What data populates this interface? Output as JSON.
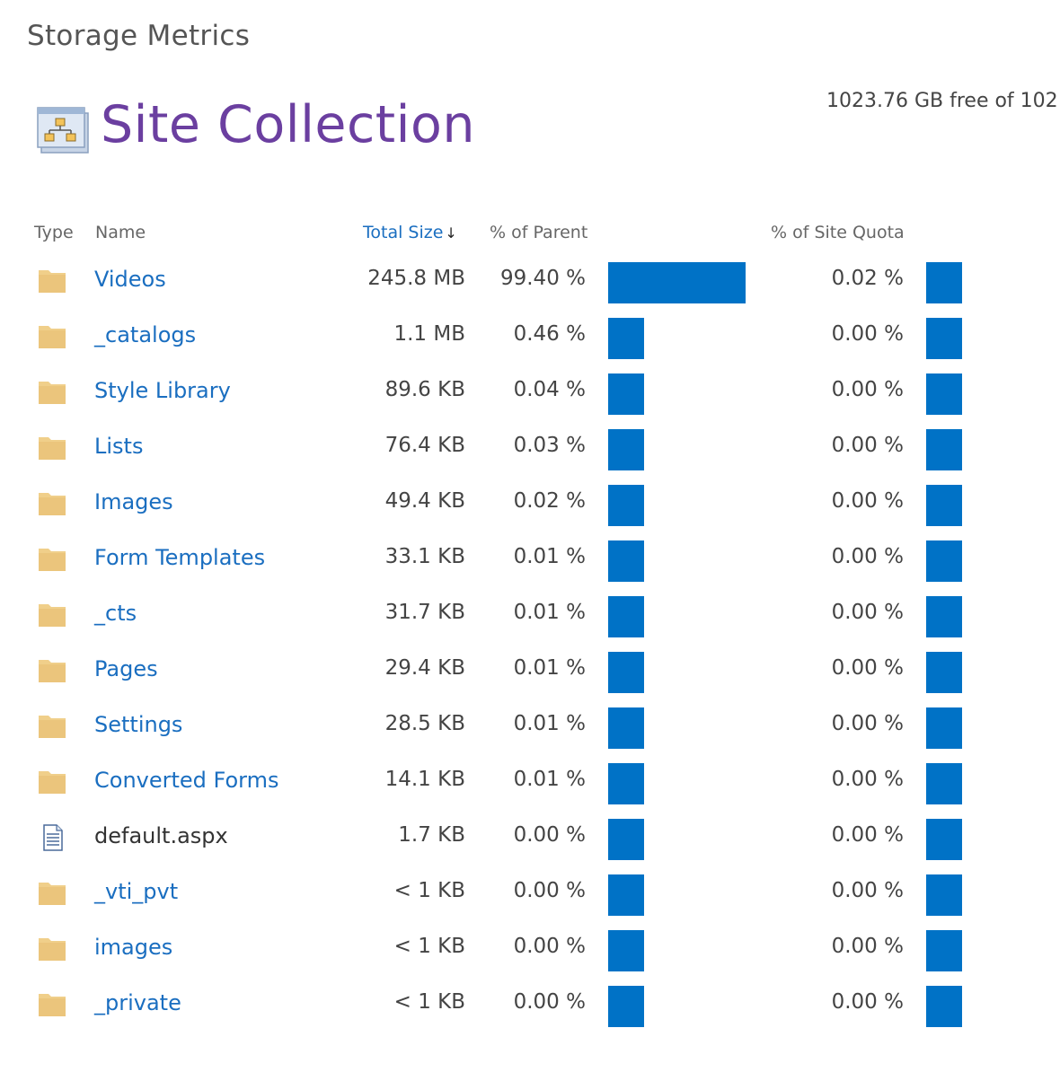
{
  "page": {
    "title": "Storage Metrics",
    "heading": "Site Collection",
    "free_space": "1023.76 GB free of 102"
  },
  "columns": {
    "type": "Type",
    "name": "Name",
    "total_size": "Total Size",
    "sort_indicator": "↓",
    "percent_of_parent": "% of Parent",
    "percent_of_site_quota": "% of Site Quota"
  },
  "colors": {
    "link": "#1a6ec0",
    "heading": "#6b3fa0",
    "bar": "#0072c6",
    "folder": "#f0cf8a"
  },
  "rows": [
    {
      "type": "folder-icon",
      "name": "Videos",
      "size": "245.8 MB",
      "parent_pct": "99.40 %",
      "parent_value": 99.4,
      "quota_pct": "0.02 %",
      "link": true
    },
    {
      "type": "folder-icon",
      "name": "_catalogs",
      "size": "1.1 MB",
      "parent_pct": "0.46 %",
      "parent_value": 0.46,
      "quota_pct": "0.00 %",
      "link": true
    },
    {
      "type": "folder-icon",
      "name": "Style Library",
      "size": "89.6 KB",
      "parent_pct": "0.04 %",
      "parent_value": 0.04,
      "quota_pct": "0.00 %",
      "link": true
    },
    {
      "type": "folder-icon",
      "name": "Lists",
      "size": "76.4 KB",
      "parent_pct": "0.03 %",
      "parent_value": 0.03,
      "quota_pct": "0.00 %",
      "link": true
    },
    {
      "type": "folder-icon",
      "name": "Images",
      "size": "49.4 KB",
      "parent_pct": "0.02 %",
      "parent_value": 0.02,
      "quota_pct": "0.00 %",
      "link": true
    },
    {
      "type": "folder-icon",
      "name": "Form Templates",
      "size": "33.1 KB",
      "parent_pct": "0.01 %",
      "parent_value": 0.01,
      "quota_pct": "0.00 %",
      "link": true
    },
    {
      "type": "folder-icon",
      "name": "_cts",
      "size": "31.7 KB",
      "parent_pct": "0.01 %",
      "parent_value": 0.01,
      "quota_pct": "0.00 %",
      "link": true
    },
    {
      "type": "folder-icon",
      "name": "Pages",
      "size": "29.4 KB",
      "parent_pct": "0.01 %",
      "parent_value": 0.01,
      "quota_pct": "0.00 %",
      "link": true
    },
    {
      "type": "folder-icon",
      "name": "Settings",
      "size": "28.5 KB",
      "parent_pct": "0.01 %",
      "parent_value": 0.01,
      "quota_pct": "0.00 %",
      "link": true
    },
    {
      "type": "folder-icon",
      "name": "Converted Forms",
      "size": "14.1 KB",
      "parent_pct": "0.01 %",
      "parent_value": 0.01,
      "quota_pct": "0.00 %",
      "link": true
    },
    {
      "type": "file-icon",
      "name": "default.aspx",
      "size": "1.7 KB",
      "parent_pct": "0.00 %",
      "parent_value": 0.0,
      "quota_pct": "0.00 %",
      "link": false
    },
    {
      "type": "folder-icon",
      "name": "_vti_pvt",
      "size": "< 1 KB",
      "parent_pct": "0.00 %",
      "parent_value": 0.0,
      "quota_pct": "0.00 %",
      "link": true
    },
    {
      "type": "folder-icon",
      "name": "images",
      "size": "< 1 KB",
      "parent_pct": "0.00 %",
      "parent_value": 0.0,
      "quota_pct": "0.00 %",
      "link": true
    },
    {
      "type": "folder-icon",
      "name": "_private",
      "size": "< 1 KB",
      "parent_pct": "0.00 %",
      "parent_value": 0.0,
      "quota_pct": "0.00 %",
      "link": true
    }
  ]
}
